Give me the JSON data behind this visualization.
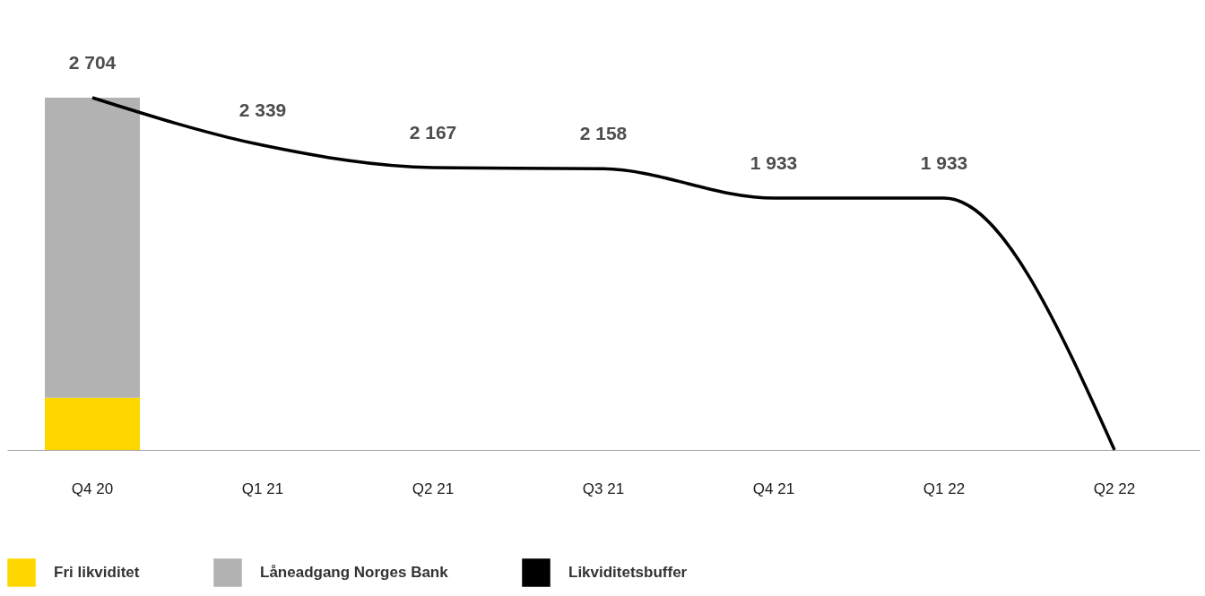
{
  "chart_data": {
    "type": "bar",
    "stacked": true,
    "categories": [
      "Q4 20",
      "Q1 21",
      "Q2 21",
      "Q3 21",
      "Q4 21",
      "Q1 22",
      "Q2 22"
    ],
    "series": [
      {
        "name": "Fri likviditet",
        "color": "#ffd700",
        "values": [
          400,
          null,
          null,
          null,
          null,
          null,
          null
        ]
      },
      {
        "name": "Låneadgang Norges Bank",
        "color": "#b2b2b2",
        "values": [
          2304,
          null,
          null,
          null,
          null,
          null,
          null
        ]
      },
      {
        "name": "Likviditetsbuffer",
        "type": "line",
        "color": "#000000",
        "values": [
          2704,
          2339,
          2167,
          2158,
          1933,
          1933,
          0
        ],
        "value_labels": [
          "2 704",
          "2 339",
          "2 167",
          "2 158",
          "1 933",
          "1 933",
          null
        ]
      }
    ],
    "legend": "bottom",
    "grid": false
  }
}
